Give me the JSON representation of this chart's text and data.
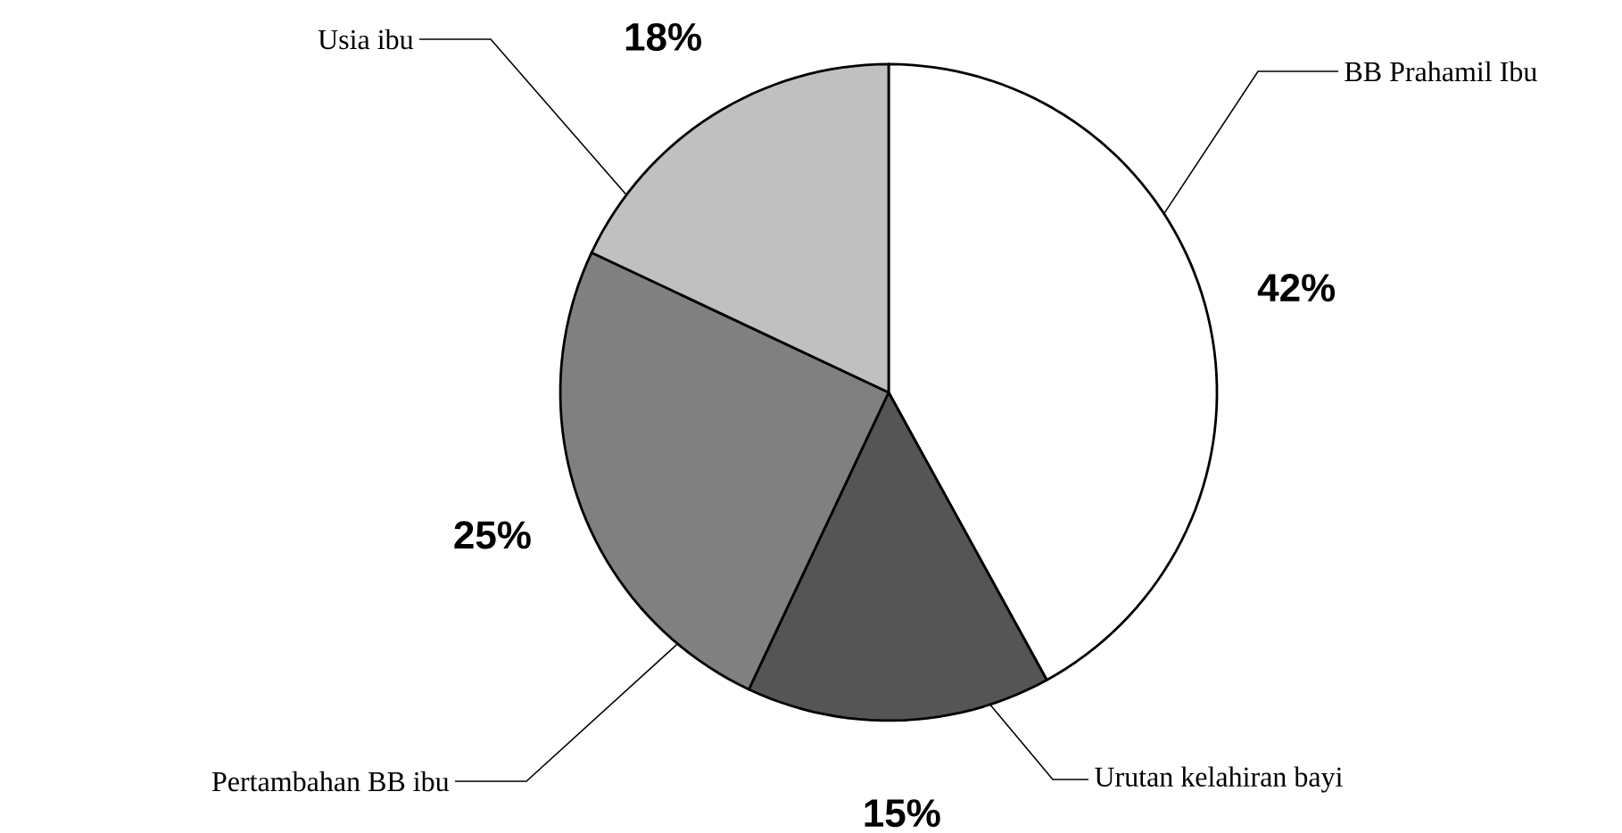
{
  "chart_data": {
    "type": "pie",
    "categories": [
      "BB  Prahamil Ibu",
      "Urutan kelahiran bayi",
      "Pertambahan BB ibu",
      "Usia ibu"
    ],
    "values": [
      42,
      15,
      25,
      18
    ],
    "colors": [
      "#ffffff",
      "#555555",
      "#808080",
      "#c0c0c0"
    ],
    "value_labels": [
      "42%",
      "15%",
      "25%",
      "18%"
    ]
  }
}
